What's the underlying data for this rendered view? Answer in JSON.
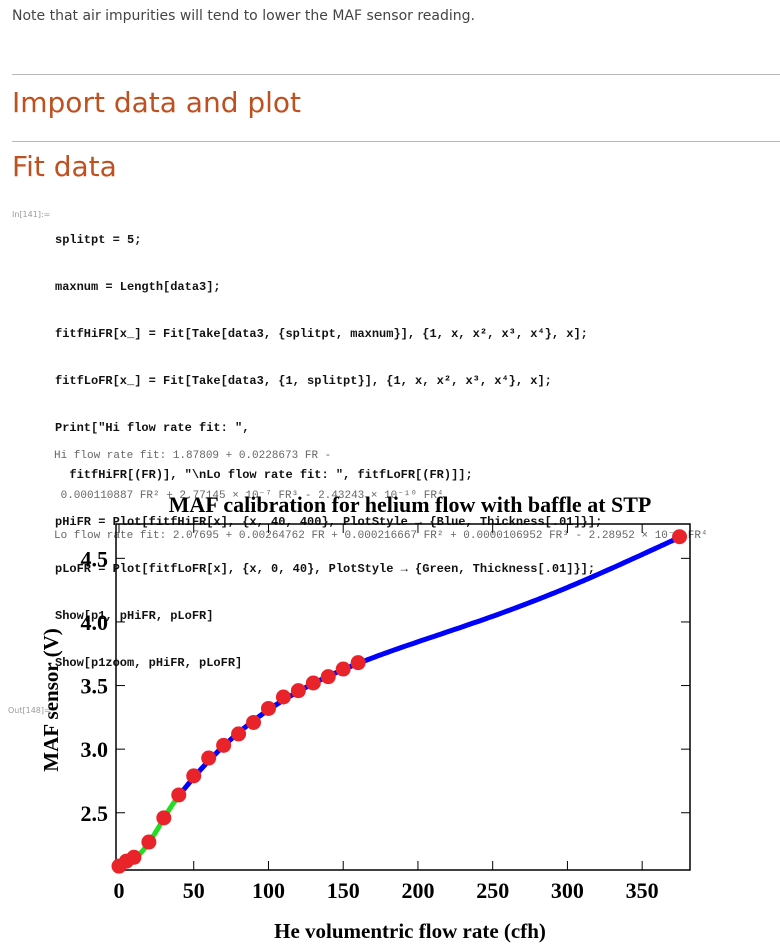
{
  "note": "Note that air impurities will tend to lower the MAF sensor reading.",
  "sections": {
    "import": "Import data and plot",
    "fit": "Fit data"
  },
  "cell": {
    "in_label": "In[141]:=",
    "out_label": "Out[148]="
  },
  "code_lines": [
    "splitpt = 5;",
    "maxnum = Length[data3];",
    "fitfHiFR[x_] = Fit[Take[data3, {splitpt, maxnum}], {1, x, x², x³, x⁴}, x];",
    "fitfLoFR[x_] = Fit[Take[data3, {1, splitpt}], {1, x, x², x³, x⁴}, x];",
    "Print[\"Hi flow rate fit: \",",
    "  fitfHiFR[(FR)], \"\\nLo flow rate fit: \", fitfLoFR[(FR)]];",
    "pHiFR = Plot[fitfHiFR[x], {x, 40, 400}, PlotStyle → {Blue, Thickness[.01]}];",
    "pLoFR = Plot[fitfLoFR[x], {x, 0, 40}, PlotStyle → {Green, Thickness[.01]}];",
    "Show[p1, pHiFR, pLoFR]",
    "Show[p1zoom, pHiFR, pLoFR]"
  ],
  "output_lines": [
    "Hi flow rate fit: 1.87809 + 0.0228673 FR -",
    " 0.000110887 FR² + 2.77145 × 10⁻⁷ FR³ - 2.43243 × 10⁻¹⁰ FR⁴",
    "Lo flow rate fit: 2.07695 + 0.00264762 FR + 0.000216667 FR² + 0.0000106952 FR³ - 2.28952 × 10⁻⁷ FR⁴"
  ],
  "chart_data": {
    "type": "scatter",
    "title": "MAF calibration for helium flow with baffle at STP",
    "xlabel": "He volumentric flow rate (cfh)",
    "ylabel": "MAF sensor (V)",
    "xlim": [
      -2,
      382
    ],
    "ylim": [
      2.05,
      4.77
    ],
    "x_ticks": [
      0,
      50,
      100,
      150,
      200,
      250,
      300,
      350
    ],
    "y_ticks": [
      2.5,
      3.0,
      3.5,
      4.0,
      4.5
    ],
    "x_tick_labels": [
      "0",
      "50",
      "100",
      "150",
      "200",
      "250",
      "300",
      "350"
    ],
    "y_tick_labels": [
      "2.5",
      "3.0",
      "3.5",
      "4.0",
      "4.5"
    ],
    "grid": false,
    "colors": {
      "points": "#e8242a",
      "hi_fit": "#0000ff",
      "lo_fit": "#22dd22"
    },
    "points": {
      "x": [
        0,
        5,
        10,
        20,
        30,
        40,
        50,
        60,
        70,
        80,
        90,
        100,
        110,
        120,
        130,
        140,
        150,
        160,
        375
      ],
      "y": [
        2.08,
        2.12,
        2.15,
        2.27,
        2.46,
        2.64,
        2.79,
        2.93,
        3.03,
        3.12,
        3.21,
        3.32,
        3.41,
        3.46,
        3.52,
        3.57,
        3.63,
        3.68,
        4.67
      ]
    },
    "hi_fit_coefficients": [
      1.87809,
      0.0228673,
      -0.000110887,
      2.77145e-07,
      -2.43243e-10
    ],
    "lo_fit_coefficients": [
      2.07695,
      0.00264762,
      0.000216667,
      1.06952e-05,
      -2.28952e-07
    ],
    "hi_fit_range": [
      40,
      378
    ],
    "lo_fit_range": [
      0,
      40
    ]
  }
}
